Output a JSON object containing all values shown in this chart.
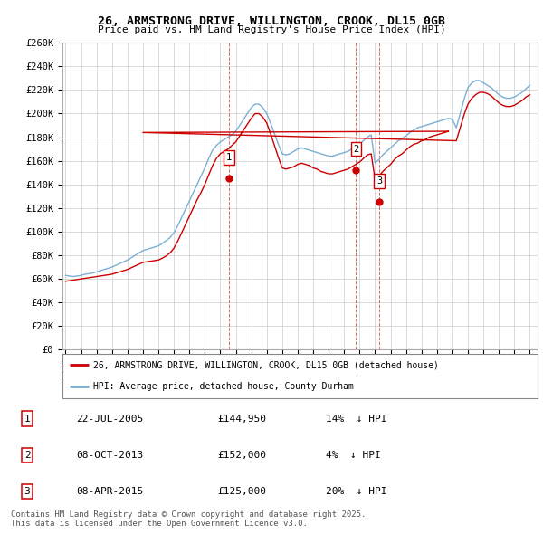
{
  "title": "26, ARMSTRONG DRIVE, WILLINGTON, CROOK, DL15 0GB",
  "subtitle": "Price paid vs. HM Land Registry's House Price Index (HPI)",
  "bg_color": "#ffffff",
  "plot_bg_color": "#ffffff",
  "grid_color": "#cccccc",
  "red_color": "#cc0000",
  "blue_color": "#7bafd4",
  "ylim": [
    0,
    260000
  ],
  "yticks": [
    0,
    20000,
    40000,
    60000,
    80000,
    100000,
    120000,
    140000,
    160000,
    180000,
    200000,
    220000,
    240000,
    260000
  ],
  "ytick_labels": [
    "£0",
    "£20K",
    "£40K",
    "£60K",
    "£80K",
    "£100K",
    "£120K",
    "£140K",
    "£160K",
    "£180K",
    "£200K",
    "£220K",
    "£240K",
    "£260K"
  ],
  "xlim_start": 1994.8,
  "xlim_end": 2025.5,
  "sale_events": [
    {
      "num": 1,
      "year": 2005.55,
      "price": 144950,
      "date": "22-JUL-2005",
      "pct": "14%",
      "dir": "↓"
    },
    {
      "num": 2,
      "year": 2013.77,
      "price": 152000,
      "date": "08-OCT-2013",
      "pct": "4%",
      "dir": "↓"
    },
    {
      "num": 3,
      "year": 2015.27,
      "price": 125000,
      "date": "08-APR-2015",
      "pct": "20%",
      "dir": "↓"
    }
  ],
  "legend_label_red": "26, ARMSTRONG DRIVE, WILLINGTON, CROOK, DL15 0GB (detached house)",
  "legend_label_blue": "HPI: Average price, detached house, County Durham",
  "footnote": "Contains HM Land Registry data © Crown copyright and database right 2025.\nThis data is licensed under the Open Government Licence v3.0.",
  "hpi_years": [
    1995.0,
    1995.25,
    1995.5,
    1995.75,
    1996.0,
    1996.25,
    1996.5,
    1996.75,
    1997.0,
    1997.25,
    1997.5,
    1997.75,
    1998.0,
    1998.25,
    1998.5,
    1998.75,
    1999.0,
    1999.25,
    1999.5,
    1999.75,
    2000.0,
    2000.25,
    2000.5,
    2000.75,
    2001.0,
    2001.25,
    2001.5,
    2001.75,
    2002.0,
    2002.25,
    2002.5,
    2002.75,
    2003.0,
    2003.25,
    2003.5,
    2003.75,
    2004.0,
    2004.25,
    2004.5,
    2004.75,
    2005.0,
    2005.25,
    2005.5,
    2005.75,
    2006.0,
    2006.25,
    2006.5,
    2006.75,
    2007.0,
    2007.25,
    2007.5,
    2007.75,
    2008.0,
    2008.25,
    2008.5,
    2008.75,
    2009.0,
    2009.25,
    2009.5,
    2009.75,
    2010.0,
    2010.25,
    2010.5,
    2010.75,
    2011.0,
    2011.25,
    2011.5,
    2011.75,
    2012.0,
    2012.25,
    2012.5,
    2012.75,
    2013.0,
    2013.25,
    2013.5,
    2013.75,
    2014.0,
    2014.25,
    2014.5,
    2014.75,
    2015.0,
    2015.25,
    2015.5,
    2015.75,
    2016.0,
    2016.25,
    2016.5,
    2016.75,
    2017.0,
    2017.25,
    2017.5,
    2017.75,
    2018.0,
    2018.25,
    2018.5,
    2018.75,
    2019.0,
    2019.25,
    2019.5,
    2019.75,
    2020.0,
    2020.25,
    2020.5,
    2020.75,
    2021.0,
    2021.25,
    2021.5,
    2021.75,
    2022.0,
    2022.25,
    2022.5,
    2022.75,
    2023.0,
    2023.25,
    2023.5,
    2023.75,
    2024.0,
    2024.25,
    2024.5,
    2024.75,
    2025.0
  ],
  "hpi_values": [
    63000,
    62500,
    62000,
    62500,
    63000,
    64000,
    64500,
    65000,
    66000,
    67000,
    68000,
    69000,
    70000,
    71500,
    73000,
    74500,
    76000,
    78000,
    80000,
    82000,
    84000,
    85000,
    86000,
    87000,
    88000,
    90000,
    92500,
    95000,
    99000,
    105000,
    112000,
    119000,
    126000,
    133000,
    140000,
    147000,
    154000,
    162000,
    169000,
    173000,
    176000,
    178000,
    180000,
    182000,
    185000,
    190000,
    195000,
    200000,
    205000,
    208000,
    208000,
    205000,
    200000,
    192000,
    183000,
    174000,
    166000,
    165000,
    166000,
    168000,
    170000,
    171000,
    170000,
    169000,
    168000,
    167000,
    166000,
    165000,
    164000,
    164000,
    165000,
    166000,
    167000,
    168000,
    170000,
    172000,
    174000,
    177000,
    180000,
    182000,
    158000,
    161000,
    165000,
    168000,
    171000,
    174000,
    177000,
    179000,
    181000,
    184000,
    186000,
    188000,
    189000,
    190000,
    191000,
    192000,
    193000,
    194000,
    195000,
    196000,
    195000,
    188000,
    200000,
    212000,
    222000,
    226000,
    228000,
    228000,
    226000,
    224000,
    222000,
    219000,
    216000,
    214000,
    213000,
    213000,
    214000,
    216000,
    218000,
    221000,
    224000
  ],
  "prop_years": [
    1995.0,
    1995.25,
    1995.5,
    1995.75,
    1996.0,
    1996.25,
    1996.5,
    1996.75,
    1997.0,
    1997.25,
    1997.5,
    1997.75,
    1998.0,
    1998.25,
    1998.5,
    1998.75,
    1999.0,
    1999.25,
    1999.5,
    1999.75,
    2000.0,
    2000.25,
    2000.5,
    2000.75,
    2001.0,
    2001.25,
    2001.5,
    2001.75,
    2002.0,
    2002.25,
    2002.5,
    2002.75,
    2003.0,
    2003.25,
    2003.5,
    2003.75,
    2004.0,
    2004.25,
    2004.5,
    2004.75,
    2005.0,
    2005.25,
    2005.5,
    2005.75,
    2006.0,
    2006.25,
    2006.5,
    2006.75,
    2007.0,
    2007.25,
    2007.5,
    2007.75,
    2008.0,
    2008.25,
    2008.5,
    2008.75,
    2009.0,
    2009.25,
    2009.5,
    2009.75,
    2010.0,
    2010.25,
    2010.5,
    2010.75,
    2011.0,
    2011.25,
    2011.5,
    2011.75,
    2012.0,
    2012.25,
    2012.5,
    2012.75,
    2013.0,
    2013.25,
    2013.5,
    2013.75,
    2014.0,
    2014.25,
    2014.5,
    2014.75,
    2015.0,
    2015.25,
    2015.5,
    2015.75,
    2016.0,
    2016.25,
    2016.5,
    2016.75,
    2017.0,
    2017.25,
    2017.5,
    2017.75,
    2018.0,
    2018.25,
    2018.5,
    2018.75,
    2019.0,
    2019.25,
    2019.5,
    2019.75,
    2000.0,
    2020.25,
    2020.5,
    2020.75,
    2021.0,
    2021.25,
    2021.5,
    2021.75,
    2022.0,
    2022.25,
    2022.5,
    2022.75,
    2023.0,
    2023.25,
    2023.5,
    2023.75,
    2024.0,
    2024.25,
    2024.5,
    2024.75,
    2025.0
  ],
  "prop_values": [
    58000,
    58500,
    59000,
    59500,
    60000,
    60500,
    61000,
    61500,
    62000,
    62500,
    63000,
    63500,
    64000,
    65000,
    66000,
    67000,
    68000,
    69500,
    71000,
    72500,
    74000,
    74500,
    75000,
    75500,
    76000,
    77500,
    79500,
    82000,
    86000,
    92000,
    99000,
    106000,
    113000,
    120000,
    127000,
    133000,
    140000,
    148000,
    156000,
    162000,
    166000,
    168000,
    170000,
    173000,
    176000,
    181000,
    186000,
    191000,
    196000,
    200000,
    200000,
    197000,
    192000,
    183000,
    173000,
    163000,
    154000,
    153000,
    154000,
    155000,
    157000,
    158000,
    157000,
    156000,
    154000,
    153000,
    151000,
    150000,
    149000,
    149000,
    150000,
    151000,
    152000,
    153000,
    155000,
    157000,
    159000,
    162000,
    165000,
    166000,
    144000,
    147000,
    151000,
    154000,
    157000,
    161000,
    164000,
    166000,
    169000,
    172000,
    174000,
    175000,
    177000,
    178000,
    180000,
    181000,
    182000,
    183000,
    184000,
    185000,
    184000,
    177000,
    188000,
    199000,
    208000,
    213000,
    216000,
    218000,
    218000,
    217000,
    215000,
    212000,
    209000,
    207000,
    206000,
    206000,
    207000,
    209000,
    211000,
    214000,
    216000
  ]
}
